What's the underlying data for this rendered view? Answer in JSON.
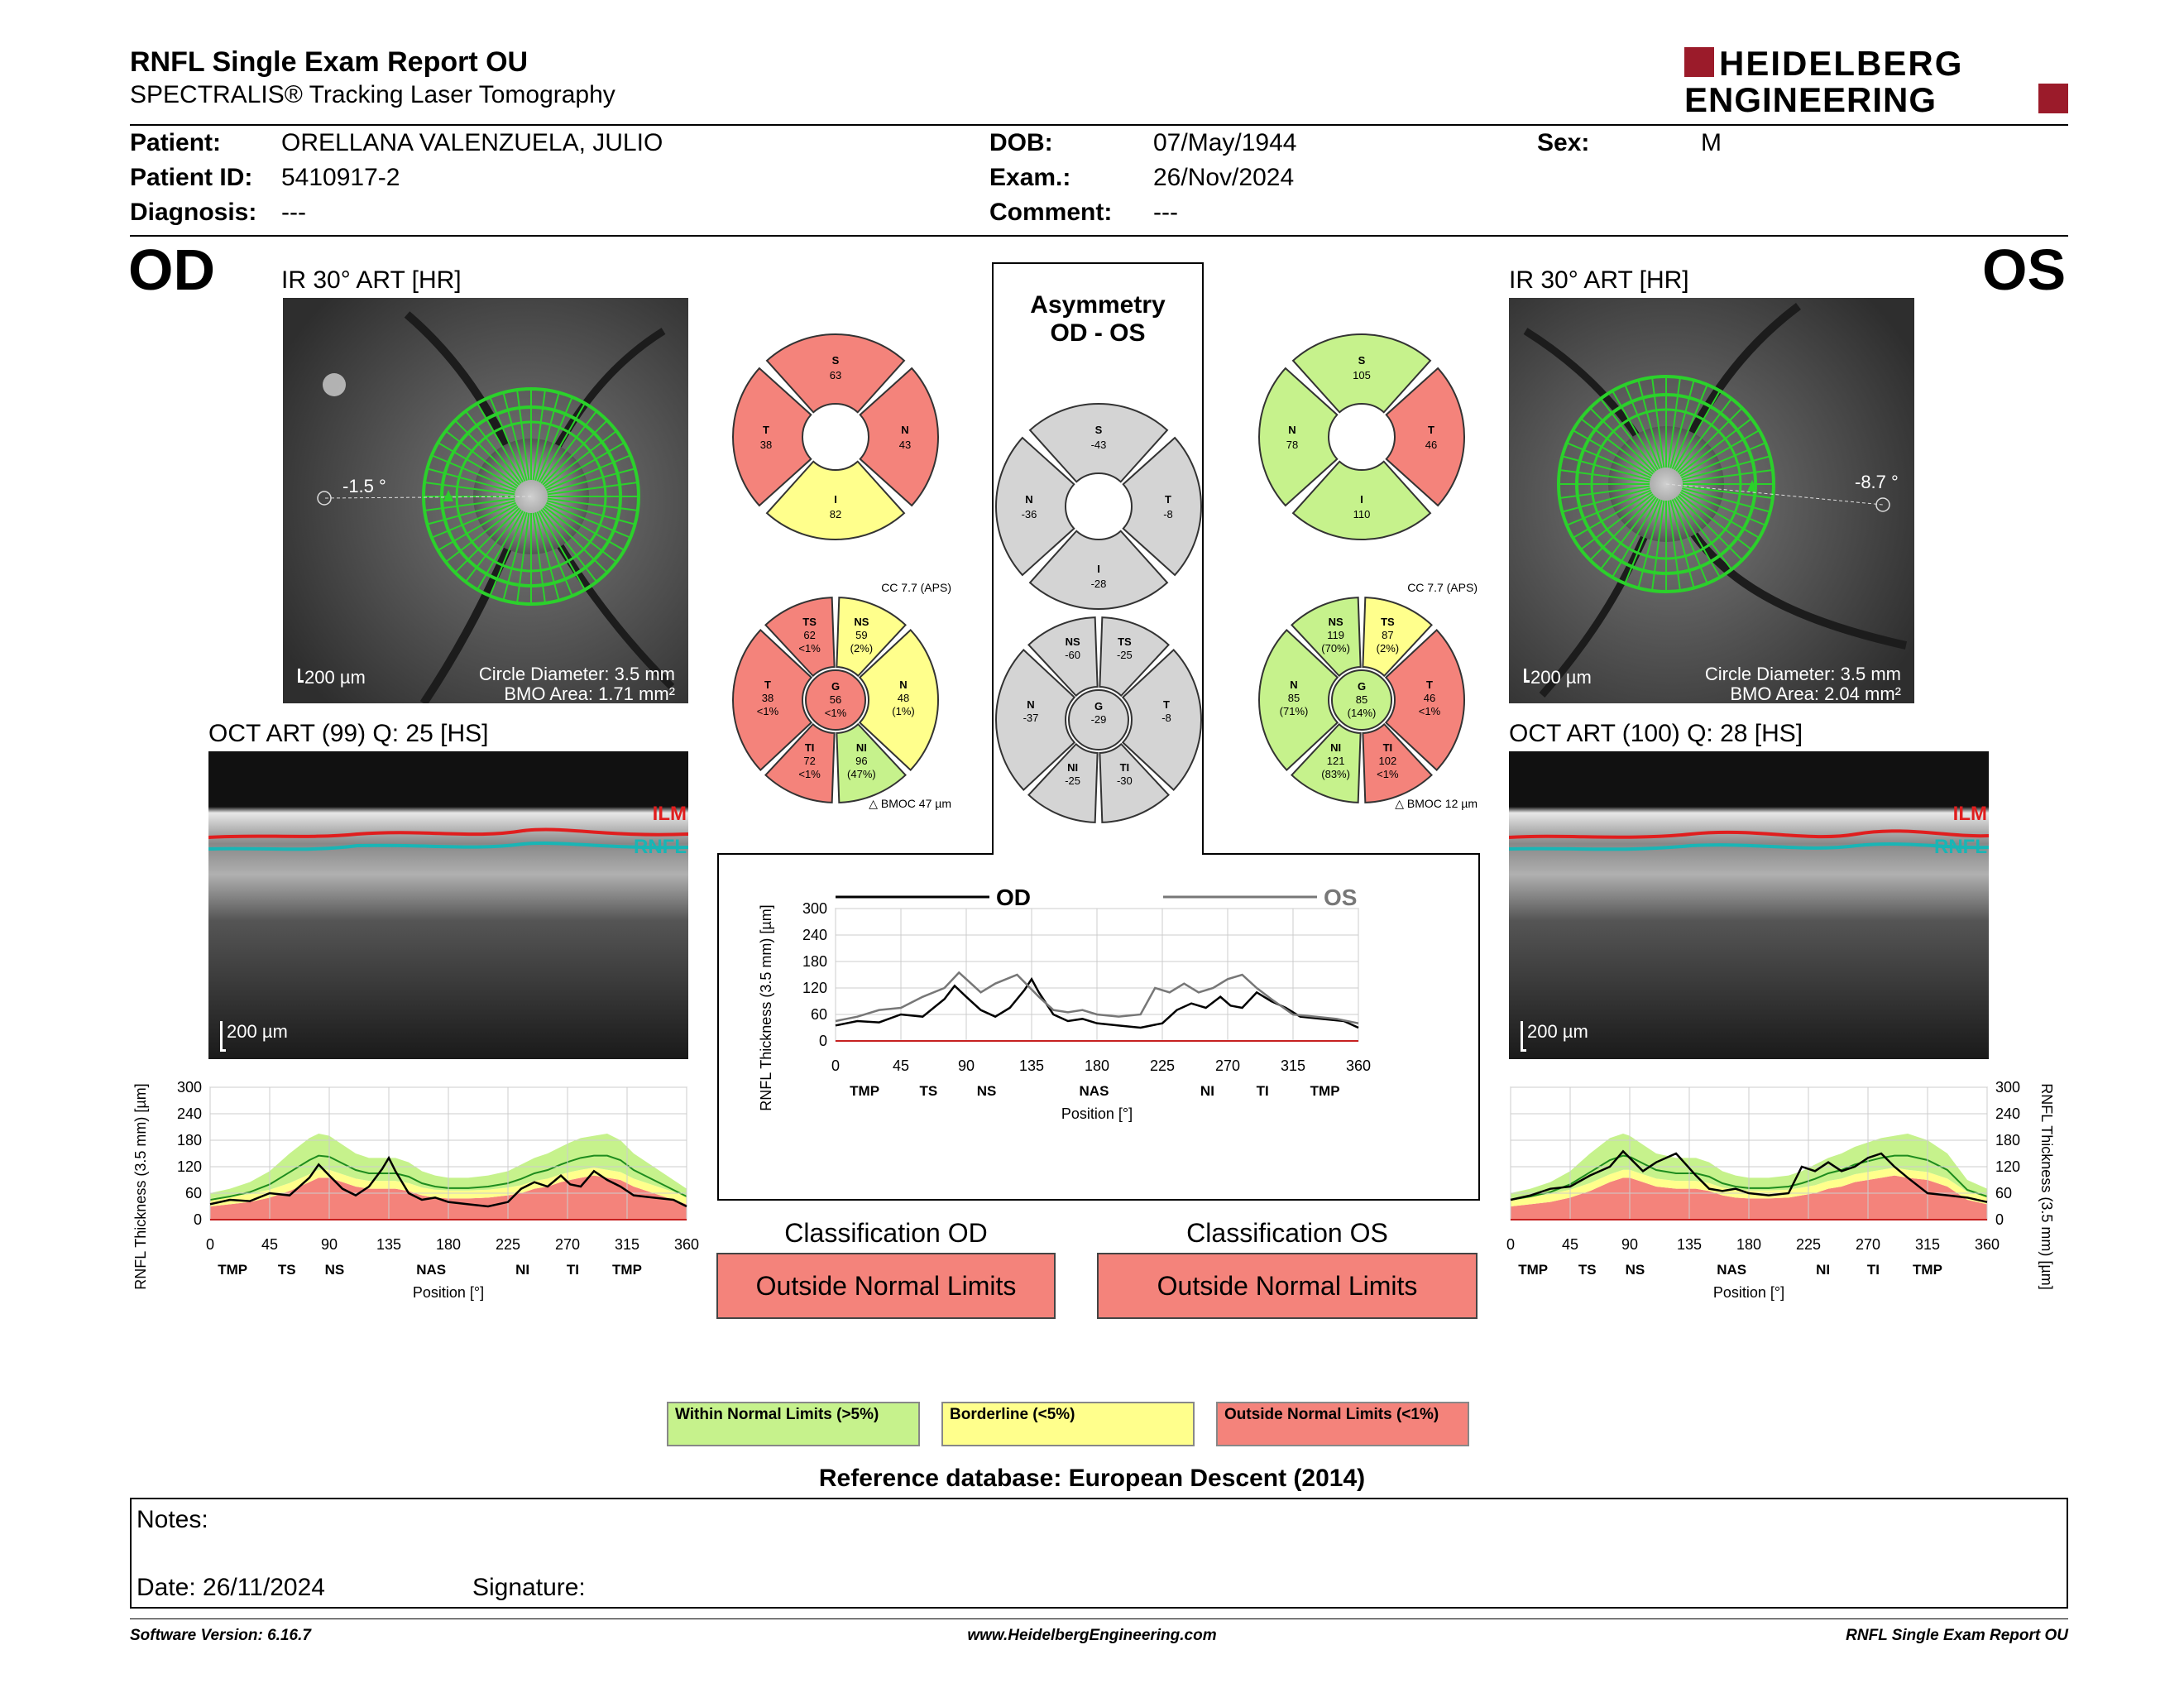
{
  "header": {
    "title": "RNFL Single Exam Report OU",
    "subtitle": "SPECTRALIS® Tracking Laser Tomography",
    "logo_line1": "HEIDELBERG",
    "logo_line2": "ENGINEERING"
  },
  "patient": {
    "patient_label": "Patient:",
    "patient_value": "ORELLANA VALENZUELA, JULIO",
    "id_label": "Patient ID:",
    "id_value": "5410917-2",
    "diagnosis_label": "Diagnosis:",
    "diagnosis_value": "---",
    "dob_label": "DOB:",
    "dob_value": "07/May/1944",
    "exam_label": "Exam.:",
    "exam_value": "26/Nov/2024",
    "comment_label": "Comment:",
    "comment_value": "---",
    "sex_label": "Sex:",
    "sex_value": "M"
  },
  "od": {
    "eye": "OD",
    "ir_title": "IR 30° ART [HR]",
    "angle": "-1.5 °",
    "scale": "200 µm",
    "circle_diameter": "Circle Diameter: 3.5 mm",
    "bmo_area": "BMO Area: 1.71 mm²",
    "oct_title": "OCT ART (99) Q: 25 [HS]",
    "oct_scale": "200 µm",
    "ilm": "ILM",
    "rnfl": "RNFL",
    "classification_title": "Classification OD",
    "classification": "Outside Normal Limits"
  },
  "os": {
    "eye": "OS",
    "ir_title": "IR 30° ART [HR]",
    "angle": "-8.7 °",
    "scale": "200 µm",
    "circle_diameter": "Circle Diameter: 3.5 mm",
    "bmo_area": "BMO Area: 2.04 mm²",
    "oct_title": "OCT ART (100) Q: 28 [HS]",
    "oct_scale": "200 µm",
    "ilm": "ILM",
    "rnfl": "RNFL",
    "classification_title": "Classification OS",
    "classification": "Outside Normal Limits"
  },
  "asymmetry": {
    "title1": "Asymmetry",
    "title2": "OD - OS"
  },
  "sectors": {
    "od4": {
      "S": [
        "S",
        "63"
      ],
      "T": [
        "T",
        "38"
      ],
      "N": [
        "N",
        "43"
      ],
      "I": [
        "I",
        "82"
      ]
    },
    "os4": {
      "S": [
        "S",
        "105"
      ],
      "N": [
        "N",
        "78"
      ],
      "T": [
        "T",
        "46"
      ],
      "I": [
        "I",
        "110"
      ]
    },
    "asym4": {
      "S": [
        "S",
        "-43"
      ],
      "N": [
        "N",
        "-36"
      ],
      "T": [
        "T",
        "-8"
      ],
      "I": [
        "I",
        "-28"
      ]
    },
    "od6": {
      "cc": "CC 7.7 (APS)",
      "bmo": "BMOC 47 µm",
      "TS": [
        "TS",
        "62",
        "<1%"
      ],
      "NS": [
        "NS",
        "59",
        "(2%)"
      ],
      "T": [
        "T",
        "38",
        "<1%"
      ],
      "G": [
        "G",
        "56",
        "<1%"
      ],
      "N": [
        "N",
        "48",
        "(1%)"
      ],
      "TI": [
        "TI",
        "72",
        "<1%"
      ],
      "NI": [
        "NI",
        "96",
        "(47%)"
      ]
    },
    "os6": {
      "cc": "CC 7.7 (APS)",
      "bmo": "BMOC 12 µm",
      "NS": [
        "NS",
        "119",
        "(70%)"
      ],
      "TS": [
        "TS",
        "87",
        "(2%)"
      ],
      "N": [
        "N",
        "85",
        "(71%)"
      ],
      "G": [
        "G",
        "85",
        "(14%)"
      ],
      "T": [
        "T",
        "46",
        "<1%"
      ],
      "NI": [
        "NI",
        "121",
        "(83%)"
      ],
      "TI": [
        "TI",
        "102",
        "<1%"
      ]
    },
    "asym6": {
      "NS": [
        "NS",
        "-60"
      ],
      "TS": [
        "TS",
        "-25"
      ],
      "N": [
        "N",
        "-37"
      ],
      "G": [
        "G",
        "-29"
      ],
      "T": [
        "T",
        "-8"
      ],
      "NI": [
        "NI",
        "-25"
      ],
      "TI": [
        "TI",
        "-30"
      ]
    }
  },
  "chart_data": [
    {
      "type": "line",
      "ylabel": "RNFL Thickness (3.5 mm) [µm]",
      "xlabel": "Position [°]",
      "x_ticks": [
        0,
        45,
        90,
        135,
        180,
        225,
        270,
        315,
        360
      ],
      "y_ticks": [
        0,
        60,
        120,
        180,
        240,
        300
      ],
      "ylim": [
        0,
        300
      ],
      "sector_labels": [
        "TMP",
        "TS",
        "NS",
        "NAS",
        "NI",
        "TI",
        "TMP"
      ],
      "sector_positions": [
        17,
        58,
        94,
        167,
        236,
        274,
        315
      ],
      "series": [
        {
          "name": "OD",
          "x": [
            0,
            15,
            30,
            45,
            60,
            75,
            82,
            90,
            100,
            110,
            120,
            130,
            135,
            140,
            150,
            160,
            170,
            180,
            195,
            210,
            225,
            235,
            245,
            255,
            265,
            272,
            280,
            290,
            300,
            310,
            320,
            335,
            350,
            360
          ],
          "y": [
            35,
            45,
            42,
            60,
            55,
            95,
            125,
            100,
            70,
            55,
            75,
            115,
            140,
            110,
            60,
            45,
            50,
            40,
            35,
            30,
            40,
            70,
            85,
            75,
            100,
            80,
            75,
            110,
            90,
            75,
            55,
            50,
            45,
            30
          ]
        }
      ],
      "band_normal_upper": [
        60,
        70,
        85,
        110,
        150,
        185,
        195,
        190,
        170,
        150,
        140,
        140,
        140,
        140,
        130,
        110,
        100,
        95,
        95,
        100,
        110,
        125,
        140,
        150,
        165,
        175,
        185,
        190,
        195,
        180,
        150,
        120,
        90,
        70
      ],
      "band_normal_lower": [
        30,
        35,
        40,
        50,
        65,
        85,
        95,
        95,
        85,
        75,
        70,
        70,
        70,
        70,
        65,
        55,
        50,
        48,
        48,
        50,
        55,
        60,
        70,
        75,
        85,
        90,
        95,
        100,
        95,
        90,
        75,
        60,
        45,
        35
      ]
    },
    {
      "type": "line",
      "ylabel": "RNFL Thickness (3.5 mm) [µm]",
      "xlabel": "Position [°]",
      "x_ticks": [
        0,
        45,
        90,
        135,
        180,
        225,
        270,
        315,
        360
      ],
      "y_ticks": [
        0,
        60,
        120,
        180,
        240,
        300
      ],
      "ylim": [
        0,
        300
      ],
      "sector_labels": [
        "TMP",
        "TS",
        "NS",
        "NAS",
        "NI",
        "TI",
        "TMP"
      ],
      "sector_positions": [
        17,
        58,
        94,
        167,
        236,
        274,
        315
      ],
      "series": [
        {
          "name": "OS",
          "x": [
            0,
            15,
            30,
            45,
            60,
            75,
            85,
            90,
            100,
            110,
            125,
            140,
            150,
            160,
            170,
            180,
            195,
            210,
            220,
            230,
            240,
            250,
            260,
            270,
            280,
            290,
            300,
            315,
            330,
            345,
            360
          ],
          "y": [
            45,
            55,
            70,
            75,
            100,
            120,
            155,
            140,
            110,
            130,
            150,
            100,
            70,
            65,
            70,
            60,
            55,
            60,
            120,
            110,
            130,
            110,
            120,
            140,
            150,
            120,
            95,
            60,
            55,
            50,
            40
          ]
        }
      ],
      "band_normal_upper": [
        60,
        70,
        85,
        110,
        150,
        185,
        195,
        190,
        170,
        150,
        140,
        140,
        130,
        110,
        100,
        95,
        95,
        100,
        110,
        125,
        140,
        150,
        165,
        175,
        185,
        190,
        195,
        180,
        150,
        90,
        70
      ],
      "band_normal_lower": [
        30,
        35,
        40,
        50,
        65,
        85,
        95,
        95,
        85,
        75,
        70,
        70,
        65,
        55,
        50,
        48,
        48,
        50,
        55,
        60,
        70,
        75,
        85,
        90,
        95,
        100,
        95,
        90,
        75,
        45,
        35
      ]
    },
    {
      "type": "line",
      "ylabel": "RNFL Thickness (3.5 mm) [µm]",
      "xlabel": "Position [°]",
      "x_ticks": [
        0,
        45,
        90,
        135,
        180,
        225,
        270,
        315,
        360
      ],
      "y_ticks": [
        0,
        60,
        120,
        180,
        240,
        300
      ],
      "ylim": [
        0,
        300
      ],
      "sector_labels": [
        "TMP",
        "TS",
        "NS",
        "NAS",
        "NI",
        "TI",
        "TMP"
      ],
      "sector_positions": [
        20,
        64,
        104,
        178,
        256,
        294,
        337
      ],
      "legend": [
        "OD",
        "OS"
      ],
      "series": [
        {
          "name": "OD",
          "x": [
            0,
            15,
            30,
            45,
            60,
            75,
            82,
            90,
            100,
            110,
            120,
            130,
            135,
            140,
            150,
            160,
            170,
            180,
            195,
            210,
            225,
            235,
            245,
            255,
            265,
            272,
            280,
            290,
            300,
            310,
            320,
            335,
            350,
            360
          ],
          "y": [
            35,
            45,
            42,
            60,
            55,
            95,
            125,
            100,
            70,
            55,
            75,
            115,
            140,
            110,
            60,
            45,
            50,
            40,
            35,
            30,
            40,
            70,
            85,
            75,
            100,
            80,
            75,
            110,
            90,
            75,
            55,
            50,
            45,
            30
          ]
        },
        {
          "name": "OS",
          "x": [
            0,
            15,
            30,
            45,
            60,
            75,
            85,
            90,
            100,
            110,
            125,
            140,
            150,
            160,
            170,
            180,
            195,
            210,
            220,
            230,
            240,
            250,
            260,
            270,
            280,
            290,
            300,
            315,
            330,
            345,
            360
          ],
          "y": [
            45,
            55,
            70,
            75,
            100,
            120,
            155,
            140,
            110,
            130,
            150,
            100,
            70,
            65,
            70,
            60,
            55,
            60,
            120,
            110,
            130,
            110,
            120,
            140,
            150,
            120,
            95,
            60,
            55,
            50,
            40
          ]
        }
      ]
    }
  ],
  "legend": {
    "wnl": "Within Normal Limits (>5%)",
    "bl": "Borderline (<5%)",
    "onl": "Outside Normal Limits (<1%)",
    "colors": {
      "wnl": "#c6f28c",
      "bl": "#ffff8c",
      "onl": "#f4837b",
      "gray": "#d4d4d4"
    }
  },
  "reference": "Reference database: European Descent (2014)",
  "notes": {
    "label": "Notes:",
    "date": "Date: 26/11/2024",
    "signature": "Signature:"
  },
  "footer": {
    "left": "Software Version: 6.16.7",
    "center": "www.HeidelbergEngineering.com",
    "right": "RNFL Single Exam Report OU"
  }
}
